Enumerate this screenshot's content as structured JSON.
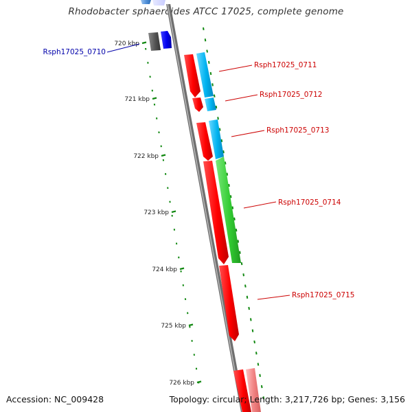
{
  "title": "Rhodobacter sphaeroides ATCC 17025, complete genome",
  "footer": {
    "accession": "Accession: NC_009428",
    "summary": "Topology: circular; Length: 3,217,726 bp; Genes: 3,156"
  },
  "colors": {
    "backbone": "#8c8c8c",
    "tick": "#118811",
    "label_red": "#cc0000",
    "label_blue": "#0000aa",
    "gene_red": "#ff0000",
    "gene_cyan": "#00b3f0",
    "gene_green": "#33cc33",
    "gene_blue": "#0000ee",
    "gene_grey": "#555555"
  },
  "scale_labels": [
    "720 kbp",
    "721 kbp",
    "722 kbp",
    "723 kbp",
    "724 kbp",
    "725 kbp",
    "726 kbp"
  ],
  "gene_labels": [
    {
      "text": "Rsph17025_0710",
      "color": "blue"
    },
    {
      "text": "Rsph17025_0711",
      "color": "red"
    },
    {
      "text": "Rsph17025_0712",
      "color": "red"
    },
    {
      "text": "Rsph17025_0713",
      "color": "red"
    },
    {
      "text": "Rsph17025_0714",
      "color": "red"
    },
    {
      "text": "Rsph17025_0715",
      "color": "red"
    }
  ]
}
